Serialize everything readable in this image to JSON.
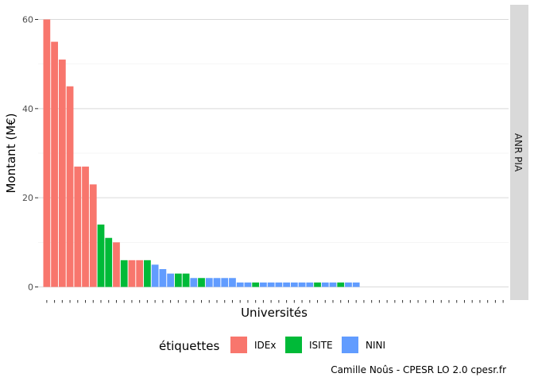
{
  "chart_data": {
    "type": "bar",
    "title": "",
    "xlabel": "Universités",
    "ylabel": "Montant (M€)",
    "ylim": [
      0,
      61
    ],
    "yticks": [
      0,
      20,
      40,
      60
    ],
    "facet_label": "ANR PIA",
    "grid": true,
    "legend_position": "bottom",
    "legend_title": "étiquettes",
    "caption": "Camille Noûs - CPESR LO 2.0 cpesr.fr",
    "n_categories": 60,
    "x_tick_labels_visible": false,
    "series": [
      {
        "name": "IDEx",
        "color": "#F8766D"
      },
      {
        "name": "ISITE",
        "color": "#00BA38"
      },
      {
        "name": "NINI",
        "color": "#619CFF"
      }
    ],
    "bars": [
      {
        "label": "IDEx",
        "value": 60
      },
      {
        "label": "IDEx",
        "value": 55
      },
      {
        "label": "IDEx",
        "value": 51
      },
      {
        "label": "IDEx",
        "value": 45
      },
      {
        "label": "IDEx",
        "value": 27
      },
      {
        "label": "IDEx",
        "value": 27
      },
      {
        "label": "IDEx",
        "value": 23
      },
      {
        "label": "ISITE",
        "value": 14
      },
      {
        "label": "ISITE",
        "value": 11
      },
      {
        "label": "IDEx",
        "value": 10
      },
      {
        "label": "ISITE",
        "value": 6
      },
      {
        "label": "IDEx",
        "value": 6
      },
      {
        "label": "IDEx",
        "value": 6
      },
      {
        "label": "ISITE",
        "value": 6
      },
      {
        "label": "NINI",
        "value": 5
      },
      {
        "label": "NINI",
        "value": 4
      },
      {
        "label": "NINI",
        "value": 3
      },
      {
        "label": "ISITE",
        "value": 3
      },
      {
        "label": "ISITE",
        "value": 3
      },
      {
        "label": "NINI",
        "value": 2
      },
      {
        "label": "ISITE",
        "value": 2
      },
      {
        "label": "NINI",
        "value": 2
      },
      {
        "label": "NINI",
        "value": 2
      },
      {
        "label": "NINI",
        "value": 2
      },
      {
        "label": "NINI",
        "value": 2
      },
      {
        "label": "NINI",
        "value": 1
      },
      {
        "label": "NINI",
        "value": 1
      },
      {
        "label": "ISITE",
        "value": 1
      },
      {
        "label": "NINI",
        "value": 1
      },
      {
        "label": "NINI",
        "value": 1
      },
      {
        "label": "NINI",
        "value": 1
      },
      {
        "label": "NINI",
        "value": 1
      },
      {
        "label": "NINI",
        "value": 1
      },
      {
        "label": "NINI",
        "value": 1
      },
      {
        "label": "NINI",
        "value": 1
      },
      {
        "label": "ISITE",
        "value": 1
      },
      {
        "label": "NINI",
        "value": 1
      },
      {
        "label": "NINI",
        "value": 1
      },
      {
        "label": "ISITE",
        "value": 1
      },
      {
        "label": "NINI",
        "value": 1
      },
      {
        "label": "NINI",
        "value": 1
      }
    ]
  }
}
